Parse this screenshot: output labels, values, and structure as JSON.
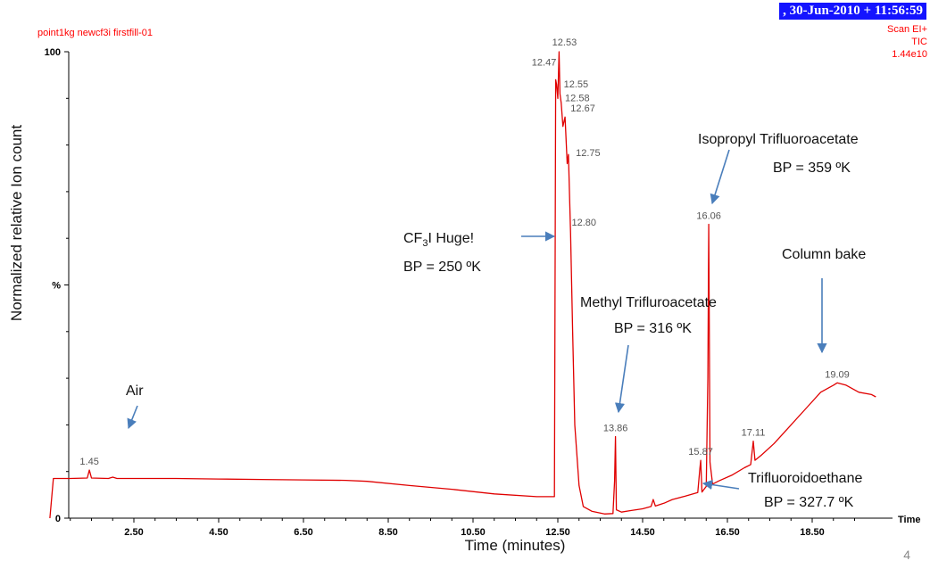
{
  "header": {
    "date_time": ",  30-Jun-2010 + 11:56:59",
    "sample": "point1kg newcf3i firstfill-01",
    "scan_mode": "Scan EI+",
    "trace": "TIC",
    "intensity": "1.44e10"
  },
  "slide_number": "4",
  "chart_data": {
    "type": "line",
    "xlabel": "Time (minutes)",
    "ylabel": "Normalized relative Ion count",
    "x_axis_end_label": "Time",
    "xlim": [
      0.5,
      20.0
    ],
    "ylim": [
      0,
      100
    ],
    "x_ticks": [
      "2.50",
      "4.50",
      "6.50",
      "8.50",
      "10.50",
      "12.50",
      "14.50",
      "16.50",
      "18.50"
    ],
    "y_ticks": [
      "0",
      "%",
      "100"
    ],
    "grid": false,
    "line_color": "#e00000",
    "series": [
      {
        "x": [
          0.52,
          0.6,
          1.0,
          1.4,
          1.45,
          1.5,
          1.9,
          2.0,
          2.1,
          2.5,
          3.5,
          4.5,
          5.5,
          6.5,
          7.5,
          8.0,
          9.0,
          10.0,
          11.0,
          12.0,
          12.42,
          12.45,
          12.47,
          12.5,
          12.53,
          12.55,
          12.58,
          12.62,
          12.67,
          12.72,
          12.75,
          12.78,
          12.8,
          12.85,
          12.9,
          13.0,
          13.1,
          13.3,
          13.6,
          13.8,
          13.84,
          13.86,
          13.88,
          14.0,
          14.2,
          14.5,
          14.7,
          14.75,
          14.8,
          15.0,
          15.2,
          15.5,
          15.8,
          15.85,
          15.87,
          15.9,
          16.0,
          16.04,
          16.06,
          16.09,
          16.15,
          16.3,
          16.6,
          16.9,
          17.05,
          17.11,
          17.15,
          17.3,
          17.6,
          18.0,
          18.4,
          18.7,
          19.0,
          19.09,
          19.3,
          19.6,
          19.9,
          20.0
        ],
        "y": [
          0,
          8.5,
          8.5,
          8.6,
          10.3,
          8.6,
          8.5,
          8.8,
          8.5,
          8.5,
          8.5,
          8.4,
          8.3,
          8.2,
          8.1,
          7.9,
          7.0,
          6.2,
          5.2,
          4.6,
          4.6,
          94,
          93,
          90,
          100,
          91,
          89,
          84,
          86,
          76,
          78,
          68,
          61,
          40,
          20,
          7,
          2.5,
          1.5,
          0.9,
          1.0,
          8.0,
          17.5,
          1.8,
          1.3,
          1.6,
          2.0,
          2.5,
          4.0,
          2.6,
          3.2,
          4.0,
          4.7,
          5.5,
          10.5,
          12.4,
          5.6,
          6.8,
          30,
          63,
          12,
          7.3,
          8.0,
          9.2,
          10.8,
          11.5,
          16.5,
          12.4,
          13.5,
          16.0,
          20.0,
          24.0,
          27.0,
          28.5,
          29.0,
          28.5,
          27.0,
          26.5,
          26.0
        ]
      }
    ],
    "peak_labels": [
      {
        "x": 1.45,
        "y": 10.3,
        "text": "1.45"
      },
      {
        "x": 12.53,
        "y": 100,
        "text": "12.53"
      },
      {
        "x": 12.47,
        "y": 94,
        "text": "12.47"
      },
      {
        "x": 12.55,
        "y": 91,
        "text": "12.55"
      },
      {
        "x": 12.58,
        "y": 89,
        "text": "12.58"
      },
      {
        "x": 12.67,
        "y": 86,
        "text": "12.67"
      },
      {
        "x": 12.75,
        "y": 78,
        "text": "12.75"
      },
      {
        "x": 12.8,
        "y": 61,
        "text": "12.80"
      },
      {
        "x": 13.86,
        "y": 17.5,
        "text": "13.86"
      },
      {
        "x": 15.87,
        "y": 12.4,
        "text": "15.87"
      },
      {
        "x": 16.06,
        "y": 63,
        "text": "16.06"
      },
      {
        "x": 17.11,
        "y": 16.5,
        "text": "17.11"
      },
      {
        "x": 19.09,
        "y": 29,
        "text": "19.09"
      }
    ],
    "annotations": [
      {
        "text": "Air",
        "sub": "",
        "rest": ""
      },
      {
        "text": "CF",
        "sub": "3",
        "rest": "I Huge!"
      },
      {
        "text": "BP = 250 ºK",
        "sub": "",
        "rest": ""
      },
      {
        "text": "Methyl Trifluroacetate",
        "sub": "",
        "rest": ""
      },
      {
        "text": "BP = 316 ºK",
        "sub": "",
        "rest": ""
      },
      {
        "text": "Isopropyl Trifluoroacetate",
        "sub": "",
        "rest": ""
      },
      {
        "text": "BP = 359 ºK",
        "sub": "",
        "rest": ""
      },
      {
        "text": "Column bake",
        "sub": "",
        "rest": ""
      },
      {
        "text": "Trifluoroidoethane",
        "sub": "",
        "rest": ""
      },
      {
        "text": "BP = 327.7 ºK",
        "sub": "",
        "rest": ""
      }
    ],
    "arrow_color": "#4a7ebb"
  }
}
